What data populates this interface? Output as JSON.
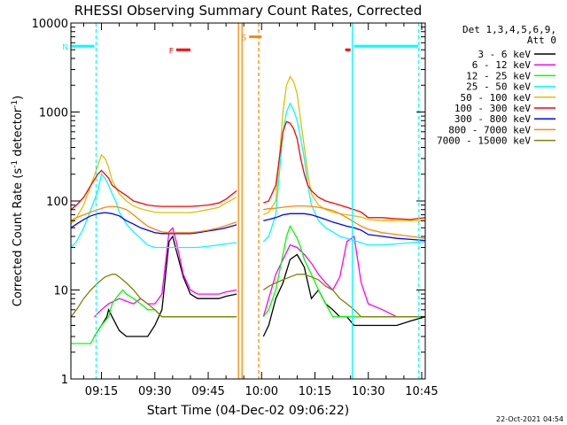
{
  "chart_data": {
    "type": "line",
    "title": "RHESSI Observing Summary Count Rates, Corrected",
    "xlabel": "Start Time (04-Dec-02 09:06:22)",
    "ylabel_main": "Corrected Count Rate (s",
    "ylabel_sup1": "-1",
    "ylabel_mid": " detector",
    "ylabel_sup2": "-1",
    "ylabel_end": ")",
    "xlim": [
      546.4,
      646
    ],
    "ylim": [
      1,
      10000
    ],
    "yscale": "log",
    "x_ticks": [
      {
        "label": "09:15",
        "value": 555
      },
      {
        "label": "09:30",
        "value": 570
      },
      {
        "label": "09:45",
        "value": 585
      },
      {
        "label": "10:00",
        "value": 600
      },
      {
        "label": "10:15",
        "value": 615
      },
      {
        "label": "10:30",
        "value": 630
      },
      {
        "label": "10:45",
        "value": 645
      }
    ],
    "y_ticks": [
      {
        "label": "1",
        "value": 1
      },
      {
        "label": "10",
        "value": 10
      },
      {
        "label": "100",
        "value": 100
      },
      {
        "label": "1000",
        "value": 1000
      },
      {
        "label": "10000",
        "value": 10000
      }
    ],
    "legend_header": [
      "Det 1,3,4,5,6,9,",
      "Att 0"
    ],
    "data_gap": [
      593,
      600.5
    ],
    "series": [
      {
        "name": "3 - 6 keV",
        "color": "#000000",
        "x": [
          553,
          555,
          556.5,
          557,
          558,
          560,
          562,
          564,
          566,
          568,
          570,
          572,
          574,
          575,
          576,
          578,
          580,
          582,
          585,
          588,
          590,
          593
        ],
        "y": [
          3,
          4,
          5,
          6,
          5,
          3.5,
          3,
          3,
          3,
          3,
          4,
          6,
          35,
          40,
          28,
          14,
          9,
          8,
          8,
          8,
          8.5,
          9
        ],
        "x2": [
          600.5,
          602,
          604,
          606,
          608,
          610,
          612,
          614,
          616,
          618,
          620,
          622,
          624,
          626,
          628,
          630,
          634,
          638,
          642,
          646
        ],
        "y2": [
          3,
          4,
          8,
          12,
          22,
          25,
          18,
          8,
          10,
          7,
          6,
          5,
          5,
          4,
          4,
          4,
          4,
          4,
          4.5,
          5
        ]
      },
      {
        "name": "6 - 12 keV",
        "color": "#ff00ff",
        "x": [
          553,
          555,
          557,
          560,
          562,
          564,
          566,
          568,
          570,
          572,
          574,
          575,
          576,
          578,
          580,
          582,
          585,
          588,
          590,
          593
        ],
        "y": [
          5,
          6,
          7,
          8,
          7.5,
          7,
          8,
          7,
          7,
          9,
          45,
          50,
          35,
          15,
          10,
          9,
          9,
          9,
          9.5,
          10
        ],
        "x2": [
          600.5,
          602,
          604,
          606,
          608,
          610,
          612,
          614,
          616,
          618,
          620,
          622,
          624,
          626,
          628,
          630,
          634,
          638,
          642,
          646
        ],
        "y2": [
          5,
          8,
          15,
          22,
          32,
          30,
          25,
          20,
          15,
          12,
          10,
          14,
          35,
          40,
          12,
          7,
          6,
          5,
          5,
          5
        ]
      },
      {
        "name": "12 - 25 keV",
        "color": "#00ff00",
        "x": [
          546.4,
          550,
          551,
          552,
          553,
          555,
          557,
          558,
          559,
          560,
          561,
          562,
          564,
          566,
          568,
          570,
          572,
          574,
          576,
          578,
          580,
          582,
          585,
          588,
          590,
          593
        ],
        "y": [
          2.5,
          2.5,
          2.5,
          2.5,
          3,
          4,
          5,
          7,
          8,
          9,
          10,
          9,
          8,
          7,
          6,
          6,
          5,
          5,
          5,
          5,
          5,
          5,
          5,
          5,
          5,
          5
        ],
        "x2": [
          600.5,
          602,
          604,
          606,
          607,
          608,
          609,
          610,
          611,
          612,
          614,
          616,
          618,
          620,
          622,
          624,
          626,
          628,
          630,
          634,
          638,
          642,
          646
        ],
        "y2": [
          5,
          6,
          10,
          25,
          40,
          52,
          45,
          38,
          30,
          22,
          15,
          10,
          7,
          5,
          5,
          5,
          5,
          5,
          5,
          5,
          5,
          5,
          5
        ]
      },
      {
        "name": "25 - 50 keV",
        "color": "#00ffff",
        "x": [
          546.4,
          548,
          550,
          552,
          554,
          555,
          556,
          557,
          558,
          559,
          560,
          562,
          564,
          566,
          568,
          570,
          572,
          574,
          576,
          578,
          580,
          582,
          585,
          588,
          590,
          593
        ],
        "y": [
          30,
          35,
          50,
          80,
          130,
          200,
          180,
          150,
          120,
          100,
          75,
          55,
          45,
          38,
          32,
          30,
          30,
          30,
          30,
          30,
          30,
          30,
          31,
          32,
          33,
          34
        ],
        "x2": [
          600.5,
          602,
          604,
          605,
          606,
          607,
          608,
          609,
          610,
          611,
          612,
          613,
          614,
          616,
          618,
          620,
          622,
          624,
          626,
          628,
          630,
          634,
          638,
          642,
          646
        ],
        "y2": [
          35,
          40,
          70,
          200,
          600,
          1000,
          1250,
          1050,
          800,
          500,
          300,
          150,
          90,
          60,
          50,
          45,
          40,
          38,
          36,
          34,
          32,
          32,
          33,
          34,
          35
        ]
      },
      {
        "name": "50 - 100 keV",
        "color": "#e0c000",
        "x": [
          546.4,
          548,
          550,
          552,
          554,
          555,
          556,
          557,
          558,
          560,
          562,
          564,
          566,
          568,
          570,
          572,
          574,
          576,
          578,
          580,
          582,
          585,
          588,
          590,
          593
        ],
        "y": [
          55,
          65,
          90,
          150,
          250,
          330,
          300,
          240,
          170,
          120,
          100,
          88,
          82,
          78,
          75,
          74,
          74,
          74,
          74,
          74,
          76,
          80,
          85,
          95,
          110
        ],
        "x2": [
          600.5,
          602,
          604,
          605,
          606,
          607,
          608,
          609,
          610,
          611,
          612,
          613,
          614,
          616,
          618,
          620,
          622,
          624,
          626,
          628,
          630,
          634,
          638,
          642,
          646
        ],
        "y2": [
          70,
          75,
          100,
          300,
          1000,
          2000,
          2500,
          2200,
          1600,
          800,
          400,
          200,
          120,
          90,
          80,
          75,
          72,
          70,
          68,
          66,
          62,
          60,
          60,
          60,
          60
        ]
      },
      {
        "name": "100 - 300 keV",
        "color": "#ff0000",
        "x": [
          546.4,
          548,
          550,
          552,
          554,
          555,
          556,
          557,
          558,
          560,
          562,
          564,
          566,
          568,
          570,
          572,
          574,
          576,
          578,
          580,
          582,
          585,
          588,
          590,
          593
        ],
        "y": [
          80,
          90,
          110,
          150,
          200,
          220,
          200,
          180,
          150,
          130,
          115,
          100,
          95,
          90,
          88,
          87,
          87,
          87,
          87,
          87,
          88,
          90,
          95,
          105,
          130
        ],
        "x2": [
          600.5,
          602,
          604,
          605,
          606,
          607,
          608,
          609,
          610,
          611,
          612,
          613,
          614,
          616,
          618,
          620,
          622,
          624,
          626,
          628,
          630,
          634,
          638,
          642,
          646
        ],
        "y2": [
          95,
          100,
          150,
          300,
          600,
          780,
          750,
          650,
          500,
          300,
          200,
          150,
          130,
          110,
          100,
          95,
          90,
          85,
          80,
          75,
          65,
          65,
          63,
          62,
          65
        ]
      },
      {
        "name": "300 - 800 keV",
        "color": "#0000ff",
        "x": [
          546.4,
          548,
          550,
          552,
          554,
          556,
          558,
          560,
          562,
          564,
          566,
          568,
          570,
          572,
          574,
          576,
          578,
          580,
          582,
          585,
          588,
          590,
          593
        ],
        "y": [
          50,
          55,
          62,
          68,
          72,
          74,
          72,
          68,
          60,
          55,
          50,
          47,
          44,
          43,
          43,
          43,
          43,
          43,
          44,
          46,
          48,
          50,
          54
        ],
        "x2": [
          600.5,
          602,
          604,
          606,
          608,
          610,
          612,
          614,
          616,
          618,
          620,
          622,
          624,
          626,
          628,
          630,
          634,
          638,
          642,
          646
        ],
        "y2": [
          60,
          62,
          65,
          70,
          72,
          72,
          72,
          70,
          66,
          62,
          58,
          55,
          52,
          50,
          47,
          42,
          40,
          38,
          37,
          36
        ]
      },
      {
        "name": "800 - 7000 keV",
        "color": "#ff8800",
        "x": [
          546.4,
          548,
          550,
          552,
          554,
          556,
          558,
          560,
          562,
          564,
          566,
          568,
          570,
          572,
          574,
          576,
          578,
          580,
          582,
          585,
          588,
          590,
          593
        ],
        "y": [
          60,
          65,
          70,
          75,
          80,
          85,
          87,
          85,
          80,
          70,
          60,
          52,
          48,
          45,
          44,
          44,
          44,
          44,
          45,
          47,
          50,
          53,
          58
        ],
        "x2": [
          600.5,
          602,
          604,
          606,
          608,
          610,
          612,
          614,
          616,
          618,
          620,
          622,
          624,
          626,
          628,
          630,
          634,
          638,
          642,
          646
        ],
        "y2": [
          80,
          82,
          83,
          85,
          87,
          88,
          88,
          87,
          85,
          82,
          78,
          72,
          65,
          58,
          52,
          48,
          44,
          42,
          40,
          38
        ]
      },
      {
        "name": "7000 - 15000 keV",
        "color": "#808000",
        "x": [
          546.4,
          548,
          550,
          552,
          554,
          556,
          558,
          559,
          560,
          562,
          564,
          566,
          568,
          570,
          572,
          574,
          576,
          578,
          580,
          582,
          585,
          588,
          590,
          593
        ],
        "y": [
          5,
          6,
          8,
          10,
          12,
          14,
          15,
          15,
          14,
          12,
          10,
          8,
          7,
          6,
          5,
          5,
          5,
          5,
          5,
          5,
          5,
          5,
          5,
          5
        ],
        "x2": [
          600.5,
          602,
          604,
          606,
          608,
          610,
          612,
          614,
          616,
          618,
          620,
          622,
          624,
          626,
          628,
          630,
          634,
          638,
          642,
          646
        ],
        "y2": [
          10,
          11,
          12,
          13,
          14,
          15,
          15,
          14,
          13,
          11,
          10,
          8,
          7,
          6,
          5,
          5,
          5,
          5,
          5,
          5
        ]
      }
    ],
    "markers": [
      {
        "label": "N",
        "color": "#00ffff",
        "x_start": 546.4,
        "x_end": 553,
        "level": 5500
      },
      {
        "label": "F",
        "color": "#ff0000",
        "x_start": 576,
        "x_end": 580,
        "level": 5000
      },
      {
        "label": "S",
        "color": "#ff8800",
        "x_start": 596.5,
        "x_end": 600,
        "level": 7000
      },
      {
        "label": "",
        "color": "#ff0000",
        "x_start": 623.5,
        "x_end": 625,
        "level": 5000
      },
      {
        "label": "",
        "color": "#00ffff",
        "x_start": 626,
        "x_end": 644,
        "level": 5500
      }
    ],
    "vlines": [
      {
        "x": 546.4,
        "color": "#00ffff",
        "style": "solid"
      },
      {
        "x": 553.5,
        "color": "#00ffff",
        "style": "dashed"
      },
      {
        "x": 593.5,
        "color": "#ff8800",
        "style": "solid"
      },
      {
        "x": 594.5,
        "color": "#ff8800",
        "style": "solid"
      },
      {
        "x": 599.2,
        "color": "#ff8800",
        "style": "dashed"
      },
      {
        "x": 625.5,
        "color": "#00ffff",
        "style": "solid"
      },
      {
        "x": 644.2,
        "color": "#00ffff",
        "style": "dashed"
      }
    ]
  },
  "timestamp": "22-Oct-2021 04:54"
}
